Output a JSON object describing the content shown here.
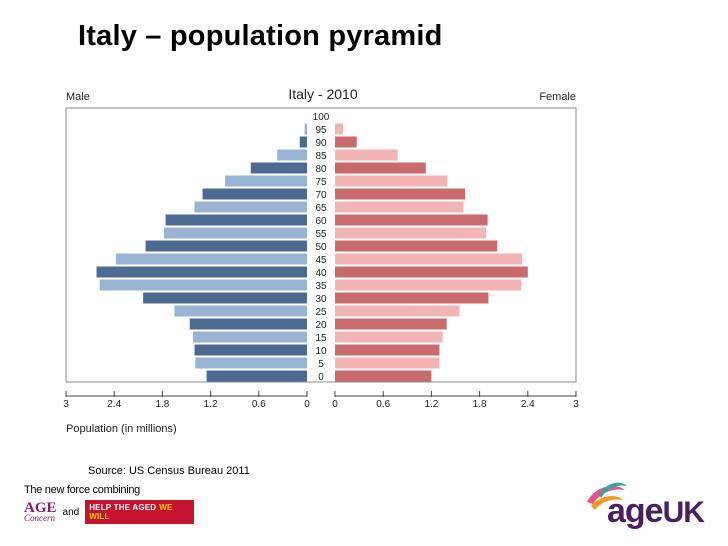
{
  "slide": {
    "title": "Italy – population pyramid",
    "source": "Source: US Census Bureau 2011"
  },
  "footer": {
    "tagline": "The new force combining",
    "age_concern_top": "AGE",
    "age_concern_bottom": "Concern",
    "and": "and",
    "help_the_aged": "HELP THE AGED",
    "we_will": "WE WILL",
    "logo_text": "age",
    "logo_uk": "UK"
  },
  "colors": {
    "male_dark": "#4d6b91",
    "male_light": "#98b3d3",
    "female_dark": "#c96b6d",
    "female_light": "#f2b4b4",
    "axis": "#444444"
  },
  "chart_data": {
    "type": "bar",
    "title": "Italy - 2010",
    "left_label": "Male",
    "right_label": "Female",
    "xlabel": "Population (in millions)",
    "xlim": [
      0,
      3
    ],
    "xticks": [
      3,
      2.4,
      1.8,
      1.2,
      0.6,
      0
    ],
    "xtick_labels_left": [
      "3",
      "2.4",
      "1.8",
      "1.2",
      "0.6",
      "0"
    ],
    "xtick_labels_right": [
      "0",
      "0.6",
      "1.2",
      "1.8",
      "2.4",
      "3"
    ],
    "categories": [
      "100",
      "95",
      "90",
      "85",
      "80",
      "75",
      "70",
      "65",
      "60",
      "55",
      "50",
      "45",
      "40",
      "35",
      "30",
      "25",
      "20",
      "15",
      "10",
      "5",
      "0"
    ],
    "series": [
      {
        "name": "Male",
        "values": [
          0.0,
          0.03,
          0.09,
          0.37,
          0.7,
          1.02,
          1.3,
          1.4,
          1.76,
          1.78,
          2.01,
          2.38,
          2.62,
          2.58,
          2.04,
          1.65,
          1.46,
          1.42,
          1.4,
          1.39,
          1.25
        ]
      },
      {
        "name": "Female",
        "values": [
          0.0,
          0.1,
          0.27,
          0.78,
          1.13,
          1.4,
          1.62,
          1.6,
          1.9,
          1.88,
          2.02,
          2.33,
          2.4,
          2.32,
          1.91,
          1.55,
          1.39,
          1.34,
          1.3,
          1.3,
          1.2
        ]
      }
    ]
  }
}
